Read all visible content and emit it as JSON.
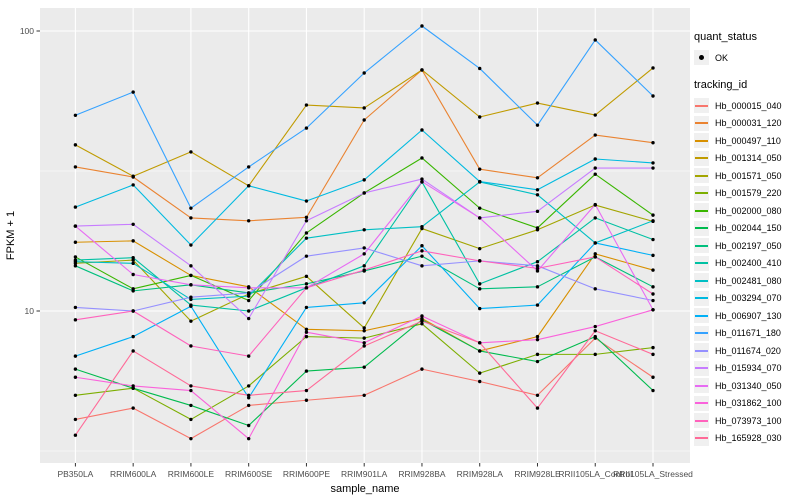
{
  "figure": {
    "background": "#FFFFFF",
    "panel_background": "#EBEBEB",
    "grid_color": "#FFFFFF",
    "point_color": "#000000",
    "axis_text_color": "#4D4D4D",
    "tick_mark_color": "#333333",
    "title_text_color": "#000000"
  },
  "chart_data": {
    "type": "line",
    "title": "",
    "xlabel": "sample_name",
    "ylabel": "FPKM + 1",
    "y_scale": "log10",
    "y_ticks": [
      100,
      10
    ],
    "y_minor_ticks": [
      31.623,
      3.162
    ],
    "ylim": [
      2.9,
      121
    ],
    "grid": true,
    "legend_position": "right",
    "point_shape": "filled-circle",
    "categories": [
      "PB350LA",
      "RRIM600LA",
      "RRIM600LE",
      "RRIM600SE",
      "RRIM600PE",
      "RRIM901LA",
      "RRIM928BA",
      "RRIM928LA",
      "RRIM928LE",
      "RRII105LA_Control",
      "RRII105LA_Stressed"
    ],
    "series": [
      {
        "name": "Hb_000015_040",
        "color": "#F8766D",
        "values": [
          4.1,
          4.5,
          3.5,
          4.6,
          4.8,
          5.0,
          6.2,
          5.6,
          5.0,
          8.0,
          5.8
        ]
      },
      {
        "name": "Hb_000031_120",
        "color": "#EA8331",
        "values": [
          32.7,
          30.1,
          21.5,
          21.0,
          21.6,
          48.1,
          72.6,
          32.1,
          29.9,
          42.5,
          39.9
        ]
      },
      {
        "name": "Hb_000497_110",
        "color": "#D89000",
        "values": [
          17.6,
          17.8,
          13.4,
          12.2,
          8.6,
          8.5,
          9.4,
          7.2,
          8.1,
          16.0,
          14.0
        ]
      },
      {
        "name": "Hb_001314_050",
        "color": "#C09B00",
        "values": [
          39.2,
          30.3,
          37.0,
          28.0,
          54.4,
          53.1,
          72.6,
          49.3,
          55.3,
          50.1,
          73.8
        ]
      },
      {
        "name": "Hb_001571_050",
        "color": "#A3A500",
        "values": [
          14.8,
          15.2,
          9.2,
          11.5,
          13.3,
          8.7,
          19.7,
          16.7,
          19.5,
          23.9,
          20.9
        ]
      },
      {
        "name": "Hb_001579_220",
        "color": "#7CAE00",
        "values": [
          5.0,
          5.3,
          4.1,
          5.4,
          8.1,
          8.0,
          9.0,
          6.0,
          7.0,
          7.0,
          7.4
        ]
      },
      {
        "name": "Hb_002000_080",
        "color": "#39B600",
        "values": [
          15.6,
          12.0,
          13.4,
          10.9,
          19.0,
          26.4,
          35.2,
          23.3,
          19.8,
          30.8,
          22.0
        ]
      },
      {
        "name": "Hb_002044_150",
        "color": "#00BB4E",
        "values": [
          6.2,
          5.3,
          4.6,
          3.9,
          6.1,
          6.3,
          9.3,
          7.2,
          6.6,
          8.1,
          5.2
        ]
      },
      {
        "name": "Hb_002197_050",
        "color": "#00BF7D",
        "values": [
          14.5,
          11.8,
          12.4,
          11.6,
          12.5,
          13.9,
          15.7,
          12.0,
          12.2,
          15.6,
          12.2
        ]
      },
      {
        "name": "Hb_002400_410",
        "color": "#00C1A3",
        "values": [
          15.2,
          15.5,
          10.5,
          10.0,
          12.1,
          14.5,
          28.9,
          12.5,
          15.0,
          21.5,
          18.0
        ]
      },
      {
        "name": "Hb_002481_080",
        "color": "#00BFC4",
        "values": [
          15.0,
          14.8,
          11.0,
          11.3,
          18.2,
          19.5,
          20.0,
          28.9,
          26.0,
          17.5,
          21.0
        ]
      },
      {
        "name": "Hb_003294_070",
        "color": "#00BAE0",
        "values": [
          23.5,
          28.2,
          17.2,
          28.0,
          24.7,
          29.4,
          44.3,
          29.0,
          27.1,
          34.9,
          33.8
        ]
      },
      {
        "name": "Hb_006907_130",
        "color": "#00B0F6",
        "values": [
          6.9,
          8.1,
          10.4,
          4.9,
          10.3,
          10.7,
          17.1,
          10.2,
          10.5,
          17.5,
          15.8
        ]
      },
      {
        "name": "Hb_011671_180",
        "color": "#35A2FF",
        "values": [
          50.0,
          60.5,
          23.3,
          32.7,
          45.0,
          70.8,
          104.2,
          73.5,
          46.1,
          92.9,
          58.6
        ]
      },
      {
        "name": "Hb_011674_020",
        "color": "#9590FF",
        "values": [
          10.3,
          10.0,
          11.2,
          11.6,
          15.7,
          16.8,
          14.5,
          15.1,
          14.5,
          12.0,
          10.9
        ]
      },
      {
        "name": "Hb_015934_070",
        "color": "#C77CFF",
        "values": [
          20.1,
          20.4,
          14.5,
          9.4,
          21.0,
          26.4,
          29.6,
          21.5,
          22.7,
          32.4,
          32.4
        ]
      },
      {
        "name": "Hb_031340_050",
        "color": "#E76BF3",
        "values": [
          20.1,
          13.5,
          12.4,
          12.1,
          12.1,
          16.0,
          29.0,
          21.5,
          13.9,
          24.0,
          10.1
        ]
      },
      {
        "name": "Hb_031862_100",
        "color": "#FA62DB",
        "values": [
          5.8,
          5.4,
          5.2,
          3.5,
          8.4,
          7.7,
          9.6,
          7.7,
          7.9,
          8.8,
          10.1
        ]
      },
      {
        "name": "Hb_073973_100",
        "color": "#FF62BC",
        "values": [
          9.3,
          10.0,
          7.5,
          6.9,
          12.1,
          14.0,
          16.4,
          15.1,
          14.2,
          15.6,
          11.5
        ]
      },
      {
        "name": "Hb_165928_030",
        "color": "#FF6A98",
        "values": [
          3.6,
          7.2,
          5.4,
          5.0,
          5.2,
          7.5,
          9.2,
          7.7,
          4.5,
          8.5,
          7.0
        ]
      }
    ]
  },
  "legend": {
    "quant_status": {
      "title": "quant_status",
      "items": [
        {
          "label": "OK"
        }
      ]
    },
    "tracking_id": {
      "title": "tracking_id"
    }
  }
}
